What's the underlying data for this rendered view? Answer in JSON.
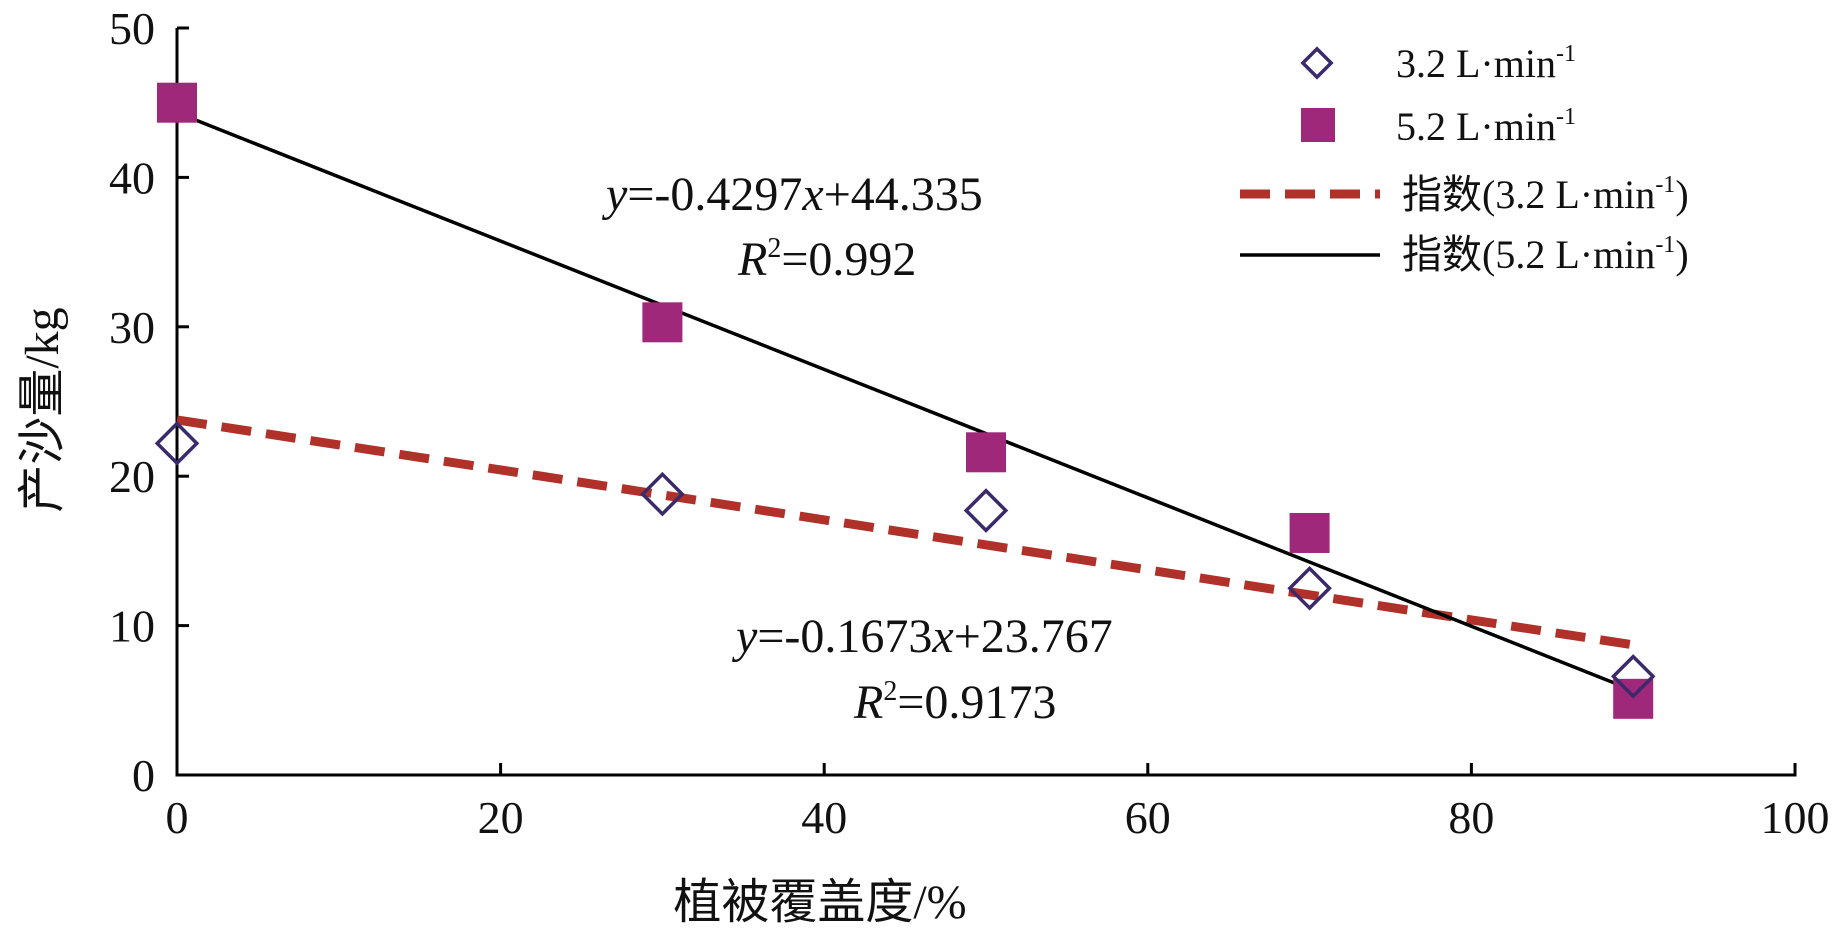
{
  "chart_data": {
    "type": "scatter",
    "xlabel": "植被覆盖度/%",
    "ylabel": "产沙量/kg",
    "xlim": [
      0,
      100
    ],
    "ylim": [
      0,
      50
    ],
    "x_ticks": [
      "0",
      "20",
      "40",
      "60",
      "80",
      "100"
    ],
    "y_ticks": [
      "0",
      "10",
      "20",
      "30",
      "40",
      "50"
    ],
    "grid": false,
    "legend_position": "top-right",
    "series": [
      {
        "name": "3.2 L·min",
        "name_sup": "-1",
        "marker": "diamond-open",
        "color": "#3b2a6b",
        "x": [
          0,
          30,
          50,
          70,
          90
        ],
        "y": [
          22.2,
          18.8,
          17.7,
          12.5,
          6.6
        ]
      },
      {
        "name": "5.2 L·min",
        "name_sup": "-1",
        "marker": "square-filled",
        "color": "#a0287a",
        "x": [
          0,
          30,
          50,
          70,
          90
        ],
        "y": [
          45.0,
          30.3,
          21.6,
          16.2,
          5.1
        ]
      }
    ],
    "fits": [
      {
        "name": "指数(3.2 L·min",
        "name_sup": "-1",
        "name_close": ")",
        "style": "dashed",
        "color": "#b0302a",
        "x": [
          0,
          90
        ],
        "y": [
          23.767,
          8.71
        ],
        "equation": "y=-0.1673x+23.767",
        "r2": "R2=0.9173"
      },
      {
        "name": "指数(5.2 L·min",
        "name_sup": "-1",
        "name_close": ")",
        "style": "solid",
        "color": "#000000",
        "x": [
          0,
          90
        ],
        "y": [
          44.335,
          5.66
        ],
        "equation": "y=-0.4297x+44.335",
        "r2": "R2=0.992"
      }
    ]
  },
  "annotations": {
    "eq_52": {
      "y_var": "y",
      "mid1": "=-0.4297",
      "x_var": "x",
      "tail": "+44.335",
      "r_var": "R",
      "r_sup": "2",
      "r_val": "=0.992"
    },
    "eq_32": {
      "y_var": "y",
      "mid1": "=-0.1673",
      "x_var": "x",
      "tail": "+23.767",
      "r_var": "R",
      "r_sup": "2",
      "r_val": "=0.9173"
    }
  }
}
